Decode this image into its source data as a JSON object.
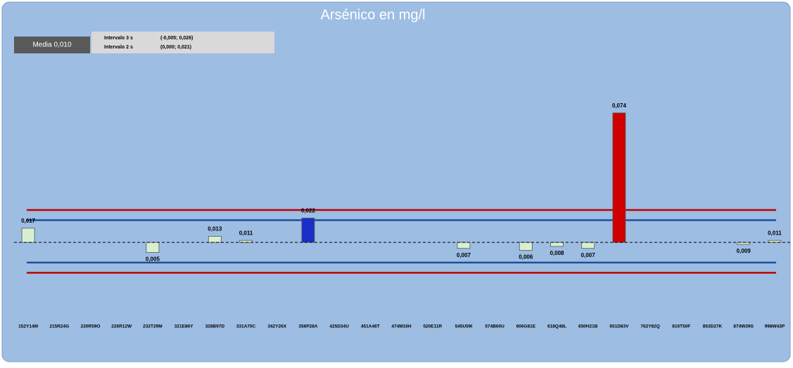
{
  "chart_data": {
    "type": "bar",
    "title": "Arsénico en mg/l",
    "mean": 0.01,
    "mean_label": "Media 0,010",
    "interval_3s": {
      "label": "Intervalo 3 s",
      "range": [
        -0.005,
        0.026
      ],
      "range_label": "(-0,005; 0,026)",
      "color": "#c00000"
    },
    "interval_2s": {
      "label": "Intervalo 2 s",
      "range": [
        0.0,
        0.021
      ],
      "range_label": "(0,000; 0,021)",
      "color": "#1f4e9a"
    },
    "categories": [
      "152Y14M",
      "215R24G",
      "220R59O",
      "226R12W",
      "232T29M",
      "321E86Y",
      "328B97D",
      "331A70C",
      "342Y26X",
      "356P28A",
      "425D34U",
      "451A46T",
      "474M16H",
      "520E11R",
      "545U59I",
      "574B60U",
      "606G81E",
      "618Q48L",
      "650H21B",
      "651D83V",
      "762Y82Q",
      "816T50F",
      "853D27K",
      "874W39S",
      "998W43P"
    ],
    "values": [
      0.017,
      null,
      null,
      null,
      0.005,
      null,
      0.013,
      0.011,
      null,
      0.022,
      null,
      null,
      null,
      null,
      0.007,
      null,
      0.006,
      0.008,
      0.007,
      0.074,
      null,
      null,
      null,
      0.009,
      0.011
    ],
    "value_labels": [
      "0,017",
      null,
      null,
      null,
      "0,005",
      null,
      "0,013",
      "0,011",
      null,
      "0,022",
      null,
      null,
      null,
      null,
      "0,007",
      null,
      "0,006",
      "0,008",
      "0,007",
      "0,074",
      null,
      null,
      null,
      "0,009",
      "0,011"
    ],
    "colors": [
      "#d8f0d0",
      null,
      null,
      null,
      "#d8f0d0",
      null,
      "#d8f0d0",
      "#d8f0d0",
      null,
      "#1a2fc8",
      null,
      null,
      null,
      null,
      "#d8f0d0",
      null,
      "#d8f0d0",
      "#d8f0d0",
      "#d8f0d0",
      "#d00000",
      null,
      null,
      null,
      "#d8f0d0",
      "#d8f0d0"
    ],
    "ylim": [
      -0.016,
      0.109
    ]
  }
}
